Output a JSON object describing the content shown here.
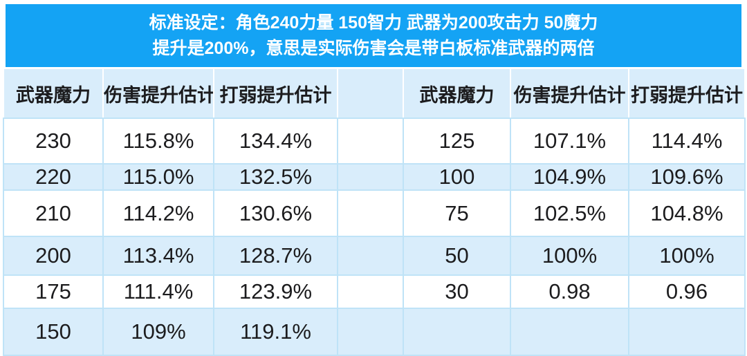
{
  "banner": {
    "line1": "标准设定：角色240力量 150智力 武器为200攻击力 50魔力",
    "line2": "提升是200%，意思是实际伤害会是带白板标准武器的两倍"
  },
  "chart_data": {
    "type": "table",
    "title": "标准设定：角色240力量 150智力 武器为200攻击力 50魔力 提升是200%，意思是实际伤害会是带白板标准武器的两倍",
    "columns_left": [
      "武器魔力",
      "伤害提升估计",
      "打弱提升估计"
    ],
    "columns_right": [
      "武器魔力",
      "伤害提升估计",
      "打弱提升估计"
    ],
    "rows": [
      {
        "left": [
          "230",
          "115.8%",
          "134.4%"
        ],
        "right": [
          "125",
          "107.1%",
          "114.4%"
        ]
      },
      {
        "left": [
          "220",
          "115.0%",
          "132.5%"
        ],
        "right": [
          "100",
          "104.9%",
          "109.6%"
        ]
      },
      {
        "left": [
          "210",
          "114.2%",
          "130.6%"
        ],
        "right": [
          "75",
          "102.5%",
          "104.8%"
        ]
      },
      {
        "left": [
          "200",
          "113.4%",
          "128.7%"
        ],
        "right": [
          "50",
          "100%",
          "100%"
        ]
      },
      {
        "left": [
          "175",
          "111.4%",
          "123.9%"
        ],
        "right": [
          "30",
          "0.98",
          "0.96"
        ]
      },
      {
        "left": [
          "150",
          "109%",
          "119.1%"
        ],
        "right": [
          "",
          "",
          ""
        ]
      }
    ]
  },
  "colors": {
    "banner_bg": "#14a3f4",
    "stripe_bg": "#d9edfb",
    "grid_line": "#bfe3f7",
    "text": "#1c1c1e"
  }
}
